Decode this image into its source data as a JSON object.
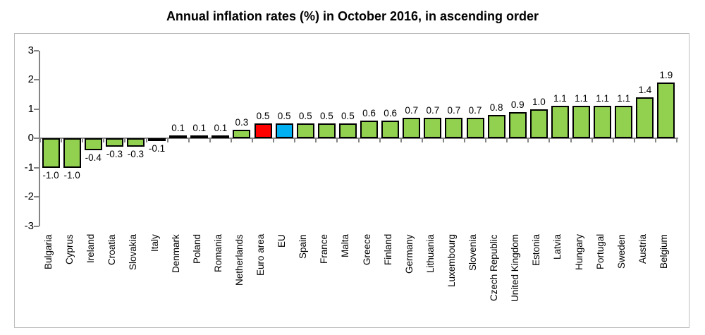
{
  "chart_data": {
    "type": "bar",
    "title": "Annual inflation rates (%) in October 2016, in ascending order",
    "xlabel": "",
    "ylabel": "",
    "ylim": [
      -3,
      3
    ],
    "yticks": [
      3,
      2,
      1,
      0,
      -1,
      -2,
      -3
    ],
    "grid": false,
    "legend": "none",
    "value_labels_shown": true,
    "colors": {
      "bar_default": "#92D050",
      "bar_border": "#000000",
      "axis": "#848484",
      "frame_border": "#BDBDBD",
      "text": "#000000"
    },
    "bars": [
      {
        "label": "Bulgaria",
        "value": -1.0,
        "display": "-1.0"
      },
      {
        "label": "Cyprus",
        "value": -1.0,
        "display": "-1.0"
      },
      {
        "label": "Ireland",
        "value": -0.4,
        "display": "-0.4"
      },
      {
        "label": "Croatia",
        "value": -0.3,
        "display": "-0.3"
      },
      {
        "label": "Slovakia",
        "value": -0.3,
        "display": "-0.3"
      },
      {
        "label": "Italy",
        "value": -0.1,
        "display": "-0.1"
      },
      {
        "label": "Denmark",
        "value": 0.1,
        "display": "0.1"
      },
      {
        "label": "Poland",
        "value": 0.1,
        "display": "0.1"
      },
      {
        "label": "Romania",
        "value": 0.1,
        "display": "0.1"
      },
      {
        "label": "Netherlands",
        "value": 0.3,
        "display": "0.3"
      },
      {
        "label": "Euro area",
        "value": 0.5,
        "display": "0.5",
        "color": "#FF0000"
      },
      {
        "label": "EU",
        "value": 0.5,
        "display": "0.5",
        "color": "#00B0F0"
      },
      {
        "label": "Spain",
        "value": 0.5,
        "display": "0.5"
      },
      {
        "label": "France",
        "value": 0.5,
        "display": "0.5"
      },
      {
        "label": "Malta",
        "value": 0.5,
        "display": "0.5"
      },
      {
        "label": "Greece",
        "value": 0.6,
        "display": "0.6"
      },
      {
        "label": "Finland",
        "value": 0.6,
        "display": "0.6"
      },
      {
        "label": "Germany",
        "value": 0.7,
        "display": "0.7"
      },
      {
        "label": "Lithuania",
        "value": 0.7,
        "display": "0.7"
      },
      {
        "label": "Luxembourg",
        "value": 0.7,
        "display": "0.7"
      },
      {
        "label": "Slovenia",
        "value": 0.7,
        "display": "0.7"
      },
      {
        "label": "Czech Republic",
        "value": 0.8,
        "display": "0.8"
      },
      {
        "label": "United Kingdom",
        "value": 0.9,
        "display": "0.9"
      },
      {
        "label": "Estonia",
        "value": 1.0,
        "display": "1.0"
      },
      {
        "label": "Latvia",
        "value": 1.1,
        "display": "1.1"
      },
      {
        "label": "Hungary",
        "value": 1.1,
        "display": "1.1"
      },
      {
        "label": "Portugal",
        "value": 1.1,
        "display": "1.1"
      },
      {
        "label": "Sweden",
        "value": 1.1,
        "display": "1.1"
      },
      {
        "label": "Austria",
        "value": 1.4,
        "display": "1.4"
      },
      {
        "label": "Belgium",
        "value": 1.9,
        "display": "1.9"
      }
    ]
  }
}
